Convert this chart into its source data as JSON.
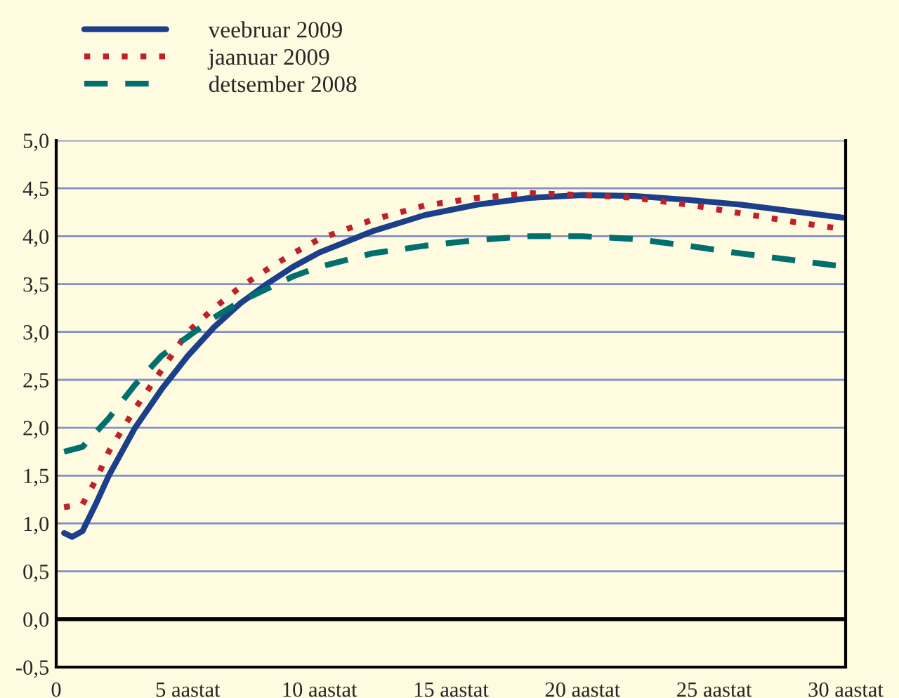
{
  "chart_data": {
    "type": "line",
    "series": [
      {
        "name": "veebruar 2009",
        "color": "#1b3f8b",
        "line_style": "solid",
        "x": [
          0.3,
          0.6,
          1,
          1.5,
          2,
          3,
          4,
          5,
          6,
          7,
          8,
          9,
          10,
          12,
          14,
          16,
          18,
          20,
          22,
          24,
          26,
          28,
          30
        ],
        "values": [
          0.9,
          0.86,
          0.92,
          1.2,
          1.5,
          2.0,
          2.4,
          2.75,
          3.05,
          3.3,
          3.5,
          3.68,
          3.83,
          4.05,
          4.22,
          4.33,
          4.4,
          4.43,
          4.42,
          4.38,
          4.33,
          4.26,
          4.19
        ]
      },
      {
        "name": "jaanuar 2009",
        "color": "#c0202a",
        "line_style": "dotted",
        "x": [
          0.3,
          1,
          1.5,
          2,
          3,
          4,
          5,
          6,
          7,
          8,
          9,
          10,
          12,
          14,
          16,
          18,
          20,
          22,
          24,
          26,
          28,
          30
        ],
        "values": [
          1.17,
          1.2,
          1.45,
          1.75,
          2.2,
          2.6,
          3.0,
          3.25,
          3.47,
          3.65,
          3.82,
          3.97,
          4.17,
          4.32,
          4.4,
          4.45,
          4.43,
          4.4,
          4.33,
          4.24,
          4.15,
          4.07
        ]
      },
      {
        "name": "detsember 2008",
        "color": "#00706e",
        "line_style": "dashed",
        "x": [
          0.3,
          1,
          2,
          3,
          4,
          5,
          6,
          7,
          8,
          9,
          10,
          12,
          14,
          16,
          18,
          20,
          22,
          24,
          26,
          28,
          30
        ],
        "values": [
          1.75,
          1.8,
          2.1,
          2.45,
          2.75,
          2.95,
          3.15,
          3.32,
          3.45,
          3.58,
          3.68,
          3.82,
          3.9,
          3.96,
          4.0,
          4.0,
          3.97,
          3.9,
          3.82,
          3.75,
          3.68
        ]
      }
    ],
    "xlim": [
      0,
      30
    ],
    "xticks": [
      {
        "value": 0,
        "label": "0"
      },
      {
        "value": 5,
        "label": "5 aastat"
      },
      {
        "value": 10,
        "label": "10 aastat"
      },
      {
        "value": 15,
        "label": "15 aastat"
      },
      {
        "value": 20,
        "label": "20 aastat"
      },
      {
        "value": 25,
        "label": "25 aastat"
      },
      {
        "value": 30,
        "label": "30 aastat"
      }
    ],
    "ylim": [
      -0.5,
      5.0
    ],
    "yticks": [
      {
        "value": -0.5,
        "label": "-0,5"
      },
      {
        "value": 0,
        "label": "0,0"
      },
      {
        "value": 0.5,
        "label": "0,5"
      },
      {
        "value": 1,
        "label": "1,0"
      },
      {
        "value": 1.5,
        "label": "1,5"
      },
      {
        "value": 2,
        "label": "2,0"
      },
      {
        "value": 2.5,
        "label": "2,5"
      },
      {
        "value": 3,
        "label": "3,0"
      },
      {
        "value": 3.5,
        "label": "3,5"
      },
      {
        "value": 4,
        "label": "4,0"
      },
      {
        "value": 4.5,
        "label": "4,5"
      },
      {
        "value": 5,
        "label": "5,0"
      }
    ],
    "ref_lines": [
      {
        "axis": "y",
        "value": 0,
        "color": "#000000",
        "line_style": "solid"
      }
    ],
    "grid": "y",
    "legend": "top left",
    "marker": "none"
  }
}
